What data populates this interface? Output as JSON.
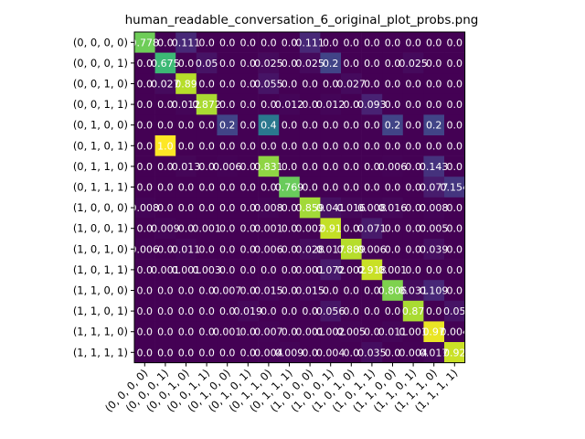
{
  "chart_data": {
    "type": "heatmap",
    "title": "human_readable_conversation_6_original_plot_probs.png",
    "colormap": "viridis",
    "vmin": 0,
    "vmax": 1,
    "row_labels": [
      "(0, 0, 0, 0)",
      "(0, 0, 0, 1)",
      "(0, 0, 1, 0)",
      "(0, 0, 1, 1)",
      "(0, 1, 0, 0)",
      "(0, 1, 0, 1)",
      "(0, 1, 1, 0)",
      "(0, 1, 1, 1)",
      "(1, 0, 0, 0)",
      "(1, 0, 0, 1)",
      "(1, 0, 1, 0)",
      "(1, 0, 1, 1)",
      "(1, 1, 0, 0)",
      "(1, 1, 0, 1)",
      "(1, 1, 1, 0)",
      "(1, 1, 1, 1)"
    ],
    "col_labels": [
      "(0, 0, 0, 0)",
      "(0, 0, 0, 1)",
      "(0, 0, 1, 0)",
      "(0, 0, 1, 1)",
      "(0, 1, 0, 0)",
      "(0, 1, 0, 1)",
      "(0, 1, 1, 0)",
      "(0, 1, 1, 1)",
      "(1, 0, 0, 0)",
      "(1, 0, 0, 1)",
      "(1, 0, 1, 0)",
      "(1, 0, 1, 1)",
      "(1, 1, 0, 0)",
      "(1, 1, 0, 1)",
      "(1, 1, 1, 0)",
      "(1, 1, 1, 1)"
    ],
    "values": [
      [
        0.778,
        0.0,
        0.111,
        0.0,
        0.0,
        0.0,
        0.0,
        0.0,
        0.111,
        0.0,
        0.0,
        0.0,
        0.0,
        0.0,
        0.0,
        0.0
      ],
      [
        0.0,
        0.675,
        0.0,
        0.05,
        0.0,
        0.0,
        0.025,
        0.0,
        0.025,
        0.2,
        0.0,
        0.0,
        0.0,
        0.025,
        0.0,
        0.0
      ],
      [
        0.0,
        0.027,
        0.89,
        0.0,
        0.0,
        0.0,
        0.055,
        0.0,
        0.0,
        0.0,
        0.027,
        0.0,
        0.0,
        0.0,
        0.0,
        0.0
      ],
      [
        0.0,
        0.0,
        0.012,
        0.872,
        0.0,
        0.0,
        0.0,
        0.012,
        0.0,
        0.012,
        0.0,
        0.093,
        0.0,
        0.0,
        0.0,
        0.0
      ],
      [
        0.0,
        0.0,
        0.0,
        0.0,
        0.2,
        0.0,
        0.4,
        0.0,
        0.0,
        0.0,
        0.0,
        0.0,
        0.2,
        0.0,
        0.2,
        0.0
      ],
      [
        0.0,
        1.0,
        0.0,
        0.0,
        0.0,
        0.0,
        0.0,
        0.0,
        0.0,
        0.0,
        0.0,
        0.0,
        0.0,
        0.0,
        0.0,
        0.0
      ],
      [
        0.0,
        0.0,
        0.013,
        0.0,
        0.006,
        0.0,
        0.831,
        0.0,
        0.0,
        0.0,
        0.0,
        0.0,
        0.006,
        0.0,
        0.143,
        0.0
      ],
      [
        0.0,
        0.0,
        0.0,
        0.0,
        0.0,
        0.0,
        0.0,
        0.769,
        0.0,
        0.0,
        0.0,
        0.0,
        0.0,
        0.0,
        0.077,
        0.154
      ],
      [
        0.008,
        0.0,
        0.0,
        0.0,
        0.0,
        0.0,
        0.008,
        0.0,
        0.859,
        0.041,
        0.016,
        0.008,
        0.016,
        0.0,
        0.008,
        0.0
      ],
      [
        0.0,
        0.009,
        0.0,
        0.001,
        0.0,
        0.0,
        0.001,
        0.0,
        0.002,
        0.91,
        0.0,
        0.071,
        0.0,
        0.0,
        0.005,
        0.0
      ],
      [
        0.006,
        0.0,
        0.011,
        0.0,
        0.0,
        0.0,
        0.006,
        0.0,
        0.028,
        0.017,
        0.889,
        0.006,
        0.0,
        0.0,
        0.039,
        0.0
      ],
      [
        0.0,
        0.001,
        0.001,
        0.003,
        0.0,
        0.0,
        0.0,
        0.0,
        0.001,
        0.072,
        0.002,
        0.918,
        0.001,
        0.0,
        0.0,
        0.0
      ],
      [
        0.0,
        0.0,
        0.0,
        0.0,
        0.007,
        0.0,
        0.015,
        0.0,
        0.015,
        0.0,
        0.0,
        0.0,
        0.806,
        0.031,
        0.109,
        0.0
      ],
      [
        0.0,
        0.0,
        0.0,
        0.0,
        0.0,
        0.019,
        0.0,
        0.0,
        0.0,
        0.056,
        0.0,
        0.0,
        0.0,
        0.87,
        0.0,
        0.05
      ],
      [
        0.0,
        0.0,
        0.0,
        0.0,
        0.001,
        0.0,
        0.007,
        0.0,
        0.001,
        0.002,
        0.005,
        0.0,
        0.011,
        0.001,
        0.97,
        0.004
      ],
      [
        0.0,
        0.0,
        0.0,
        0.0,
        0.0,
        0.0,
        0.004,
        0.009,
        0.0,
        0.004,
        0.0,
        0.035,
        0.0,
        0.004,
        0.017,
        0.92
      ]
    ],
    "cell_text": [
      [
        "0.778",
        "0.0",
        "0.111",
        "0.0",
        "0.0",
        "0.0",
        "0.0",
        "0.0",
        "0.111",
        "0.0",
        "0.0",
        "0.0",
        "0.0",
        "0.0",
        "0.0",
        "0.0"
      ],
      [
        "0.0",
        "0.675",
        "0.0",
        "0.05",
        "0.0",
        "0.0",
        "0.025",
        "0.0",
        "0.025",
        "0.2",
        "0.0",
        "0.0",
        "0.0",
        "0.025",
        "0.0",
        "0.0"
      ],
      [
        "0.0",
        "0.027",
        "0.89",
        "0.0",
        "0.0",
        "0.0",
        "0.055",
        "0.0",
        "0.0",
        "0.0",
        "0.027",
        "0.0",
        "0.0",
        "0.0",
        "0.0",
        "0.0"
      ],
      [
        "0.0",
        "0.0",
        "0.012",
        "0.872",
        "0.0",
        "0.0",
        "0.0",
        "0.012",
        "0.0",
        "0.012",
        "0.0",
        "0.093",
        "0.0",
        "0.0",
        "0.0",
        "0.0"
      ],
      [
        "0.0",
        "0.0",
        "0.0",
        "0.0",
        "0.2",
        "0.0",
        "0.4",
        "0.0",
        "0.0",
        "0.0",
        "0.0",
        "0.0",
        "0.2",
        "0.0",
        "0.2",
        "0.0"
      ],
      [
        "0.0",
        "1.0",
        "0.0",
        "0.0",
        "0.0",
        "0.0",
        "0.0",
        "0.0",
        "0.0",
        "0.0",
        "0.0",
        "0.0",
        "0.0",
        "0.0",
        "0.0",
        "0.0"
      ],
      [
        "0.0",
        "0.0",
        "0.013",
        "0.0",
        "0.006",
        "0.0",
        "0.831",
        "0.0",
        "0.0",
        "0.0",
        "0.0",
        "0.0",
        "0.006",
        "0.0",
        "0.143",
        "0.0"
      ],
      [
        "0.0",
        "0.0",
        "0.0",
        "0.0",
        "0.0",
        "0.0",
        "0.0",
        "0.769",
        "0.0",
        "0.0",
        "0.0",
        "0.0",
        "0.0",
        "0.0",
        "0.077",
        "0.154"
      ],
      [
        "0.008",
        "0.0",
        "0.0",
        "0.0",
        "0.0",
        "0.0",
        "0.008",
        "0.0",
        "0.859",
        "0.041",
        "0.016",
        "0.008",
        "0.016",
        "0.0",
        "0.008",
        "0.0"
      ],
      [
        "0.0",
        "0.009",
        "0.0",
        "0.001",
        "0.0",
        "0.0",
        "0.001",
        "0.0",
        "0.002",
        "0.91",
        "0.0",
        "0.071",
        "0.0",
        "0.0",
        "0.005",
        "0.0"
      ],
      [
        "0.006",
        "0.0",
        "0.011",
        "0.0",
        "0.0",
        "0.0",
        "0.006",
        "0.0",
        "0.028",
        "0.017",
        "0.889",
        "0.006",
        "0.0",
        "0.0",
        "0.039",
        "0.0"
      ],
      [
        "0.0",
        "0.001",
        "0.001",
        "0.003",
        "0.0",
        "0.0",
        "0.0",
        "0.0",
        "0.001",
        "0.072",
        "0.002",
        "0.918",
        "0.001",
        "0.0",
        "0.0",
        "0.0"
      ],
      [
        "0.0",
        "0.0",
        "0.0",
        "0.0",
        "0.007",
        "0.0",
        "0.015",
        "0.0",
        "0.015",
        "0.0",
        "0.0",
        "0.0",
        "0.806",
        "0.031",
        "0.109",
        "0.0"
      ],
      [
        "0.0",
        "0.0",
        "0.0",
        "0.0",
        "0.0",
        "0.019",
        "0.0",
        "0.0",
        "0.0",
        "0.056",
        "0.0",
        "0.0",
        "0.0",
        "0.87",
        "0.0",
        "0.05"
      ],
      [
        "0.0",
        "0.0",
        "0.0",
        "0.0",
        "0.001",
        "0.0",
        "0.007",
        "0.0",
        "0.001",
        "0.002",
        "0.005",
        "0.0",
        "0.011",
        "0.001",
        "0.97",
        "0.004"
      ],
      [
        "0.0",
        "0.0",
        "0.0",
        "0.0",
        "0.0",
        "0.0",
        "0.004",
        "0.009",
        "0.0",
        "0.004",
        "0.0",
        "0.035",
        "0.0",
        "0.004",
        "0.017",
        "0.92"
      ]
    ]
  }
}
